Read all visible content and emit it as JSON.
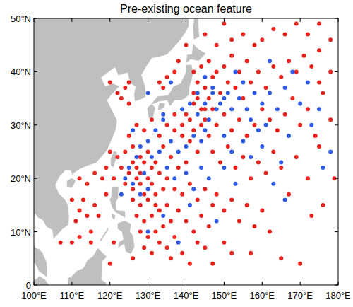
{
  "chart_data": {
    "type": "scatter",
    "title": "Pre-existing ocean feature",
    "xlim": [
      100,
      180
    ],
    "xticks": [
      {
        "value": 100,
        "label": "100°E"
      },
      {
        "value": 110,
        "label": "110°E"
      },
      {
        "value": 120,
        "label": "120°E"
      },
      {
        "value": 130,
        "label": "130°E"
      },
      {
        "value": 140,
        "label": "140°E"
      },
      {
        "value": 150,
        "label": "150°E"
      },
      {
        "value": 160,
        "label": "160°E"
      },
      {
        "value": 170,
        "label": "170°E"
      },
      {
        "value": 180,
        "label": "180°E"
      }
    ],
    "ylim": [
      0,
      50
    ],
    "yticks": [
      0,
      {
        "value": 10,
        "label": "10°N"
      },
      {
        "value": 20,
        "label": "20°N"
      },
      {
        "value": 30,
        "label": "30°N"
      },
      {
        "value": 40,
        "label": "40°N"
      },
      {
        "value": 50,
        "label": "50°N"
      }
    ],
    "marker": "circle",
    "series": [
      {
        "color": "#e8231d",
        "x": [
          112,
          114,
          116,
          118,
          113,
          116,
          119,
          111,
          115,
          117,
          119,
          121,
          123,
          125,
          127,
          129,
          124,
          126,
          128,
          130,
          126,
          128,
          130,
          132,
          134,
          127,
          129,
          131,
          133,
          135,
          128,
          130,
          132,
          134,
          136,
          129,
          131,
          133,
          135,
          137,
          138,
          140,
          142,
          144,
          146,
          139,
          141,
          143,
          145,
          147,
          122,
          124,
          126,
          128,
          130,
          132,
          134,
          136,
          138,
          140,
          125,
          127,
          129,
          131,
          133,
          135,
          137,
          139,
          141,
          143,
          140,
          142,
          144,
          146,
          142,
          143,
          145,
          147,
          149,
          151,
          142,
          144,
          146,
          148,
          150,
          152,
          154,
          156,
          153,
          155,
          123,
          124,
          125,
          122,
          125,
          133,
          135,
          137,
          134,
          138,
          157,
          159,
          161,
          163,
          165,
          167,
          169,
          171,
          173,
          175,
          160,
          163,
          166,
          169,
          172,
          175,
          178,
          158,
          155,
          152,
          148,
          150,
          152,
          154,
          156,
          158,
          160,
          162,
          164,
          166,
          147,
          149,
          151,
          153,
          155,
          157,
          159,
          161,
          163,
          165,
          148,
          150,
          152,
          154,
          156,
          158,
          160,
          162,
          145,
          150,
          168,
          170,
          172,
          174,
          176,
          178,
          169,
          172,
          175,
          167,
          136,
          139,
          141,
          143,
          147,
          152,
          126,
          165,
          170,
          157,
          110,
          112,
          112,
          114,
          120,
          115,
          121,
          107,
          110,
          120,
          127,
          129,
          131,
          133,
          135,
          137,
          131,
          128,
          132,
          126,
          142,
          144,
          146,
          141,
          143,
          145,
          139,
          137,
          145,
          147,
          140,
          145,
          150,
          148,
          175,
          178,
          176,
          179,
          173,
          120
        ],
        "values": [
          20,
          19,
          21,
          20,
          16,
          15,
          17,
          12,
          10,
          13,
          22,
          20,
          22,
          21,
          22,
          23,
          19,
          18,
          19,
          20,
          16,
          15,
          16,
          17,
          18,
          13,
          12,
          13,
          14,
          15,
          10,
          9,
          10,
          11,
          12,
          7,
          6,
          8,
          7,
          9,
          14,
          12,
          10,
          13,
          11,
          17,
          19,
          16,
          18,
          15,
          24,
          25,
          26,
          24,
          25,
          23,
          26,
          24,
          22,
          23,
          28,
          30,
          29,
          31,
          28,
          30,
          32,
          28,
          27,
          25,
          32,
          34,
          33,
          35,
          36,
          38,
          37,
          39,
          36,
          38,
          40,
          41,
          42,
          40,
          41,
          43,
          40,
          42,
          37,
          35,
          35,
          37,
          38,
          36,
          34,
          38,
          39,
          40,
          37,
          42,
          38,
          40,
          37,
          41,
          39,
          42,
          40,
          43,
          41,
          44,
          46,
          48,
          47,
          49,
          47,
          49,
          46,
          45,
          47,
          46,
          30,
          32,
          29,
          31,
          28,
          30,
          33,
          31,
          29,
          32,
          25,
          23,
          26,
          22,
          24,
          20,
          23,
          21,
          25,
          22,
          17,
          14,
          16,
          12,
          15,
          11,
          14,
          10,
          7,
          8,
          35,
          30,
          33,
          28,
          36,
          31,
          24,
          20,
          26,
          17,
          5,
          6,
          4,
          8,
          4,
          6,
          5,
          5,
          4,
          6,
          16,
          14,
          9,
          13,
          25,
          8,
          8,
          8,
          8,
          4,
          20,
          17,
          19,
          21,
          20,
          18,
          22,
          21,
          15,
          23,
          29,
          30,
          28,
          31,
          35,
          33,
          30,
          29,
          31,
          33,
          45,
          47,
          49,
          45,
          38,
          40,
          15,
          20,
          13,
          38
        ]
      },
      {
        "color": "#2d5ae6",
        "x": [
          125,
          127,
          129,
          131,
          133,
          135,
          128,
          130,
          132,
          134,
          136,
          138,
          140,
          142,
          144,
          139,
          141,
          143,
          145,
          147,
          143,
          145,
          147,
          149,
          151,
          146,
          148,
          150,
          152,
          154,
          156,
          158,
          160,
          162,
          164,
          157,
          159,
          161,
          155,
          153,
          124,
          126,
          130,
          123,
          128,
          137,
          140,
          142,
          144,
          146,
          134,
          136,
          130,
          145,
          150,
          152,
          155,
          157,
          160,
          165,
          166,
          168,
          170,
          172,
          162,
          130,
          134,
          138,
          141,
          148,
          176,
          178,
          173,
          175,
          167,
          163,
          166,
          153,
          150,
          126
        ],
        "values": [
          22,
          24,
          21,
          24,
          25,
          22,
          26,
          27,
          29,
          31,
          27,
          25,
          26,
          28,
          27,
          33,
          34,
          32,
          34,
          36,
          36,
          39,
          37,
          34,
          36,
          31,
          33,
          35,
          33,
          35,
          33,
          36,
          34,
          36,
          33,
          31,
          29,
          30,
          38,
          40,
          20,
          19,
          18,
          17,
          17,
          20,
          21,
          18,
          22,
          20,
          32,
          38,
          36,
          29,
          28,
          25,
          27,
          24,
          26,
          23,
          37,
          40,
          34,
          38,
          42,
          10,
          13,
          8,
          15,
          12,
          22,
          25,
          30,
          33,
          28,
          19,
          16,
          19,
          22,
          29
        ]
      }
    ]
  }
}
